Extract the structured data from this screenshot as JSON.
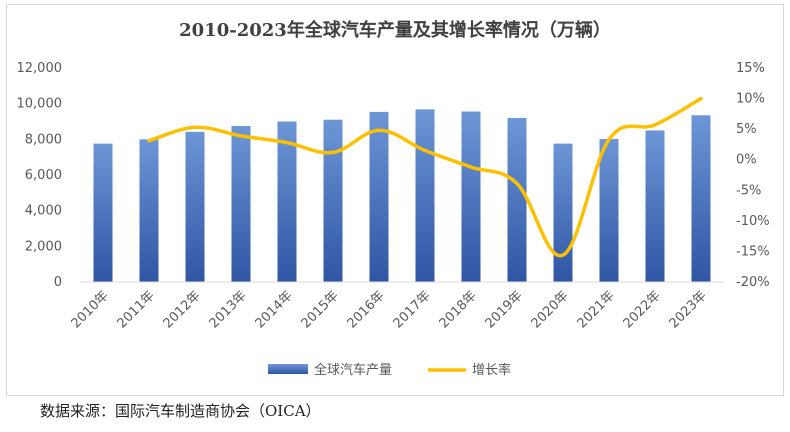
{
  "chart_data": {
    "type": "bar+line",
    "title": "2010-2023年全球汽车产量及其增长率情况（万辆）",
    "categories": [
      "2010年",
      "2011年",
      "2012年",
      "2013年",
      "2014年",
      "2015年",
      "2016年",
      "2017年",
      "2018年",
      "2019年",
      "2020年",
      "2021年",
      "2022年",
      "2023年"
    ],
    "series": [
      {
        "name": "全球汽车产量",
        "type": "bar",
        "axis": "left",
        "color": "#4472C4",
        "values": [
          7760,
          8000,
          8420,
          8750,
          9000,
          9100,
          9540,
          9680,
          9560,
          9200,
          7760,
          8020,
          8500,
          9350
        ]
      },
      {
        "name": "增长率",
        "type": "line",
        "axis": "right",
        "color": "#FFC000",
        "values": [
          null,
          3.1,
          5.3,
          3.9,
          2.8,
          1.2,
          4.8,
          1.5,
          -1.2,
          -3.9,
          -15.6,
          3.3,
          5.7,
          10.0
        ]
      }
    ],
    "y_left": {
      "min": 0,
      "max": 12000,
      "step": 2000,
      "ticks": [
        "0",
        "2,000",
        "4,000",
        "6,000",
        "8,000",
        "10,000",
        "12,000"
      ]
    },
    "y_right": {
      "min": -20,
      "max": 15,
      "step": 5,
      "ticks": [
        "-20%",
        "-15%",
        "-10%",
        "-5%",
        "0%",
        "5%",
        "10%",
        "15%"
      ]
    },
    "legend": [
      "全球汽车产量",
      "增长率"
    ],
    "legend_position": "bottom",
    "grid": false
  },
  "source_note": "数据来源：国际汽车制造商协会（OICA）"
}
